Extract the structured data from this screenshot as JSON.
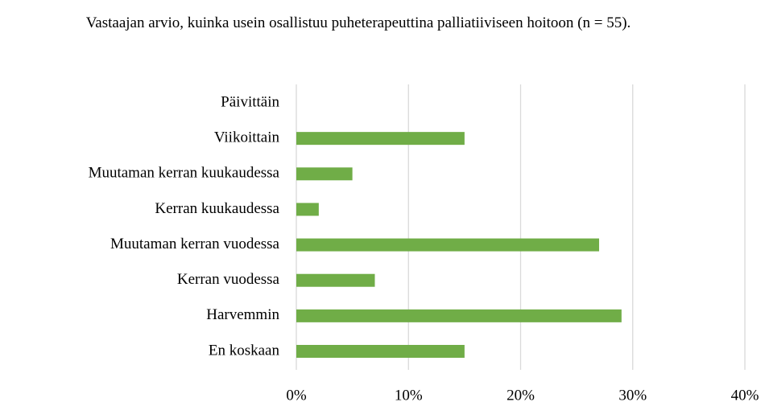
{
  "chart_data": {
    "type": "bar",
    "orientation": "horizontal",
    "title": "Vastaajan arvio, kuinka usein osallistuu puheterapeuttina palliatiiviseen hoitoon (n = 55).",
    "categories": [
      "Päivittäin",
      "Viikoittain",
      "Muutaman kerran kuukaudessa",
      "Kerran kuukaudessa",
      "Muutaman kerran vuodessa",
      "Kerran vuodessa",
      "Harvemmin",
      "En koskaan"
    ],
    "values": [
      0,
      15,
      5,
      2,
      27,
      7,
      29,
      15
    ],
    "color": "#70ad47",
    "xlim": [
      0,
      40
    ],
    "xticks": [
      {
        "value": 0,
        "label": "0%"
      },
      {
        "value": 10,
        "label": "10%"
      },
      {
        "value": 20,
        "label": "20%"
      },
      {
        "value": 30,
        "label": "30%"
      },
      {
        "value": 40,
        "label": "40%"
      }
    ],
    "grid": true
  }
}
